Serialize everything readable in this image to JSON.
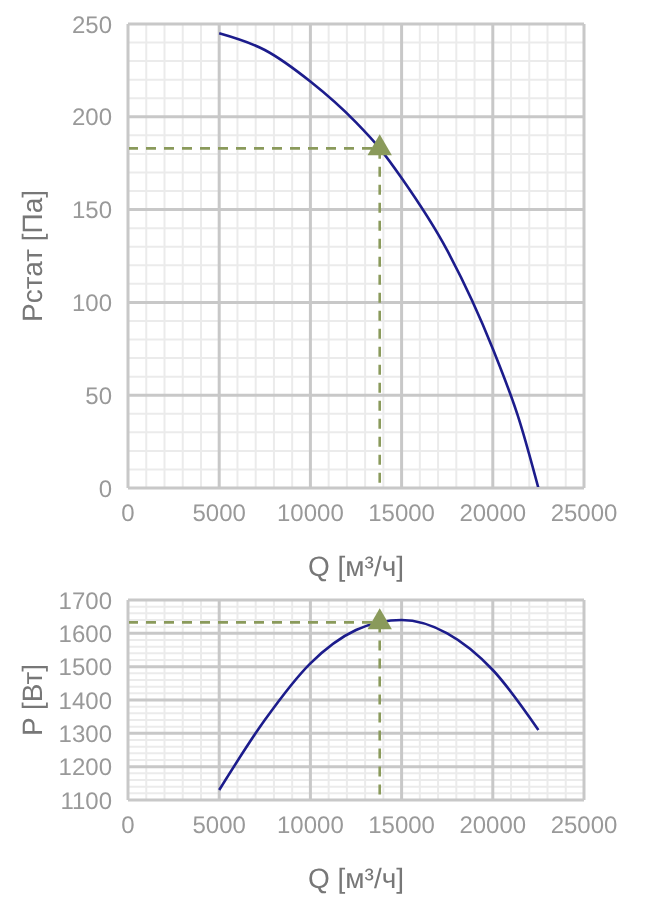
{
  "chart_data": [
    {
      "type": "line",
      "xlabel": "Q [м³/ч]",
      "ylabel": "Pстат [Па]",
      "xlim": [
        0,
        25000
      ],
      "xticks": [
        0,
        5000,
        10000,
        15000,
        20000,
        25000
      ],
      "ylim": [
        0,
        250
      ],
      "yticks": [
        0,
        50,
        100,
        150,
        200,
        250
      ],
      "grid": true,
      "series": [
        {
          "color": "#1c1c8c",
          "x": [
            5000,
            7500,
            10000,
            12500,
            13800,
            15000,
            17500,
            20000,
            21500,
            22500
          ],
          "values": [
            245,
            236,
            219,
            197,
            183,
            167,
            128,
            75,
            35,
            0
          ]
        },
        {
          "type": "line",
          "color": "#8a9a5b",
          "line_style": "dashed",
          "x": [
            0,
            13800,
            13800
          ],
          "values": [
            183,
            183,
            0
          ]
        },
        {
          "type": "scatter",
          "color": "#8a9a5b",
          "marker": "triangle",
          "x": [
            13800
          ],
          "values": [
            183
          ]
        }
      ]
    },
    {
      "type": "line",
      "xlabel": "Q [м³/ч]",
      "ylabel": "P [Вт]",
      "xlim": [
        0,
        25000
      ],
      "xticks": [
        0,
        5000,
        10000,
        15000,
        20000,
        25000
      ],
      "ylim": [
        1100,
        1700
      ],
      "yticks": [
        1100,
        1200,
        1300,
        1400,
        1500,
        1600,
        1700
      ],
      "grid": true,
      "series": [
        {
          "color": "#1c1c8c",
          "x": [
            5000,
            7500,
            10000,
            12500,
            13800,
            15000,
            17500,
            20000,
            22500
          ],
          "values": [
            1130,
            1340,
            1510,
            1610,
            1633,
            1640,
            1600,
            1490,
            1310
          ]
        },
        {
          "type": "line",
          "color": "#8a9a5b",
          "line_style": "dashed",
          "x": [
            0,
            13800,
            13800
          ],
          "values": [
            1633,
            1633,
            1100
          ]
        },
        {
          "type": "scatter",
          "color": "#8a9a5b",
          "marker": "triangle",
          "x": [
            13800
          ],
          "values": [
            1633
          ]
        }
      ]
    }
  ]
}
